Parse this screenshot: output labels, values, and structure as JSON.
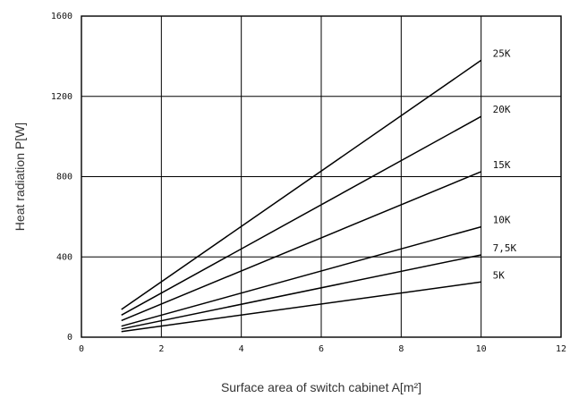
{
  "chart_data": {
    "type": "line",
    "xlabel": "Surface area of switch cabinet A[m²]",
    "ylabel": "Heat radiation P[W]",
    "xlim": [
      0,
      12
    ],
    "ylim": [
      0,
      1600
    ],
    "xticks": [
      "0",
      "2",
      "4",
      "6",
      "8",
      "10",
      "12"
    ],
    "yticks": [
      "0",
      "400",
      "800",
      "1200",
      "1600"
    ],
    "grid": true,
    "series": [
      {
        "name": "25K",
        "x": [
          1,
          10
        ],
        "y": [
          138,
          1380
        ]
      },
      {
        "name": "20K",
        "x": [
          1,
          10
        ],
        "y": [
          110,
          1100
        ]
      },
      {
        "name": "15K",
        "x": [
          1,
          10
        ],
        "y": [
          83,
          825
        ]
      },
      {
        "name": "10K",
        "x": [
          1,
          10
        ],
        "y": [
          55,
          550
        ]
      },
      {
        "name": "7,5K",
        "x": [
          1,
          10
        ],
        "y": [
          41,
          410
        ]
      },
      {
        "name": "5K",
        "x": [
          1,
          10
        ],
        "y": [
          28,
          275
        ]
      }
    ]
  }
}
